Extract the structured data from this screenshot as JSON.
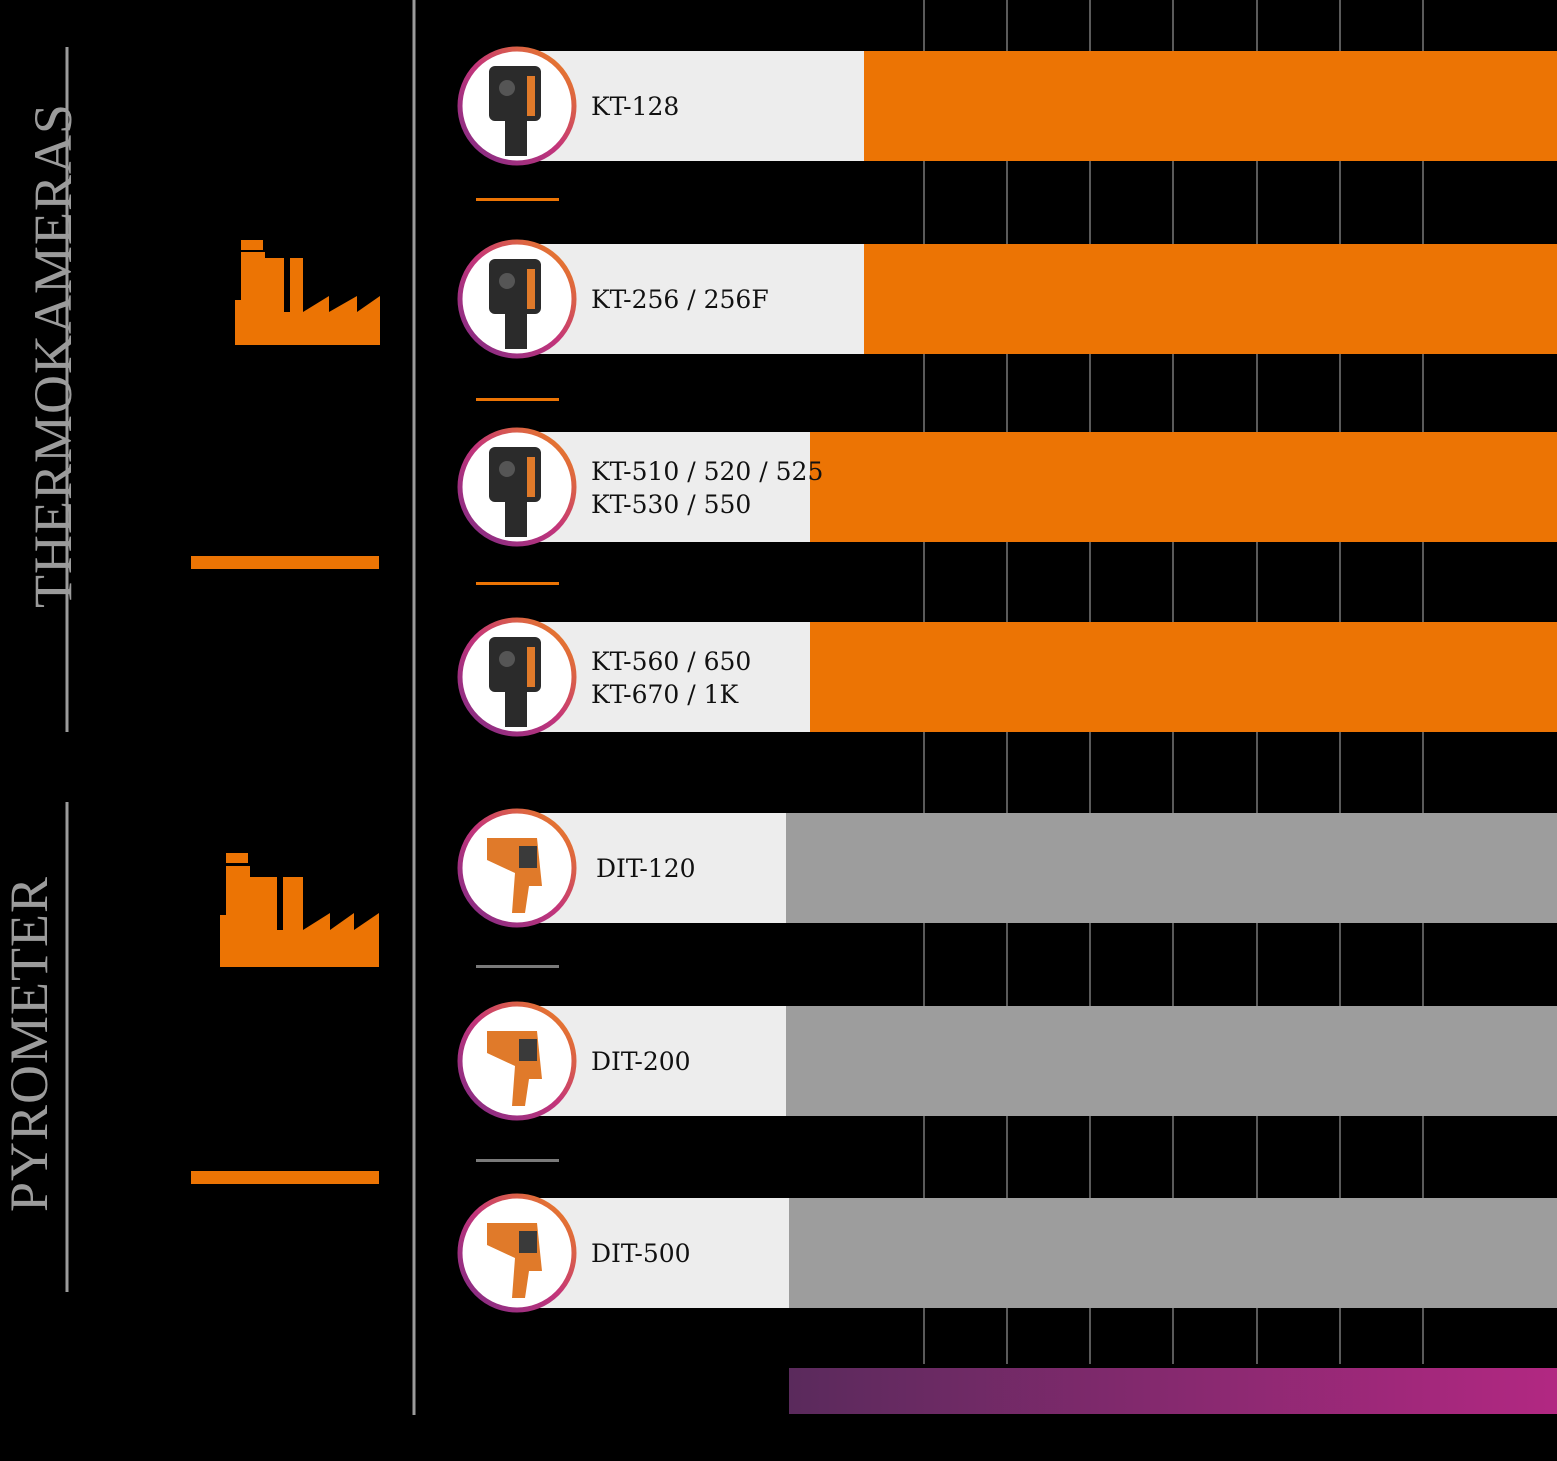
{
  "groups": [
    {
      "label": "THERMOKAMERAS"
    },
    {
      "label": "PYROMETER"
    }
  ],
  "colors": {
    "background": "#000000",
    "thermo_bar": "#ec7404",
    "pyro_bar": "#9d9d9d",
    "label_bg": "#ededed",
    "accent_orange": "#ec7404",
    "gradient_start": "#5a2a5c",
    "gradient_end": "#b22882",
    "grid": "#555555"
  },
  "icons": [
    "factory-icon",
    "factory-icon"
  ],
  "chart_data": {
    "type": "bar",
    "orientation": "horizontal",
    "grid": true,
    "categories": [
      "KT-128",
      "KT-256 / 256F",
      "KT-510 / 520 / 525\nKT-530 / 550",
      "KT-560 / 650\nKT-670 / 1K",
      "DIT-120",
      "DIT-200",
      "DIT-500"
    ],
    "series": [
      {
        "group": "THERMOKAMERAS",
        "categories_idx": [
          0,
          1,
          2,
          3
        ],
        "color": "#ec7404"
      },
      {
        "group": "PYROMETER",
        "categories_idx": [
          4,
          5,
          6
        ],
        "color": "#9d9d9d"
      }
    ],
    "bar_start_fraction": [
      0.555,
      0.555,
      0.52,
      0.52,
      0.505,
      0.505,
      0.507
    ],
    "gradient_bar_start_fraction": 0.507
  }
}
